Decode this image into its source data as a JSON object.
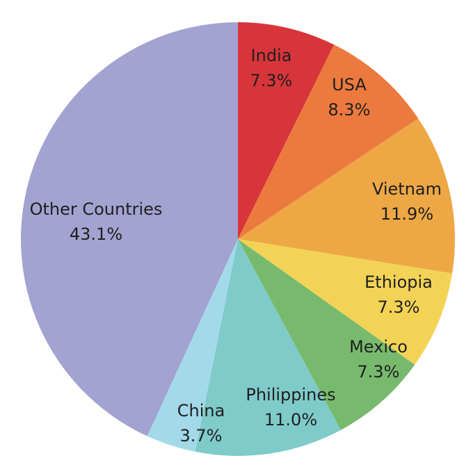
{
  "chart_data": {
    "type": "pie",
    "title": "",
    "start_angle_deg": 0,
    "direction": "clockwise",
    "slices": [
      {
        "label": "India",
        "value": 7.3,
        "value_label": "7.3%",
        "color": "#d8353a"
      },
      {
        "label": "USA",
        "value": 8.3,
        "value_label": "8.3%",
        "color": "#ec7a3f"
      },
      {
        "label": "Vietnam",
        "value": 11.9,
        "value_label": "11.9%",
        "color": "#eda845"
      },
      {
        "label": "Ethiopia",
        "value": 7.3,
        "value_label": "7.3%",
        "color": "#f2d356"
      },
      {
        "label": "Mexico",
        "value": 7.3,
        "value_label": "7.3%",
        "color": "#78ba6d"
      },
      {
        "label": "Philippines",
        "value": 11.0,
        "value_label": "11.0%",
        "color": "#7ecbca"
      },
      {
        "label": "China",
        "value": 3.7,
        "value_label": "3.7%",
        "color": "#a3d9e9"
      },
      {
        "label": "Other Countries",
        "value": 43.1,
        "value_label": "43.1%",
        "color": "#a3a3d1"
      }
    ]
  }
}
